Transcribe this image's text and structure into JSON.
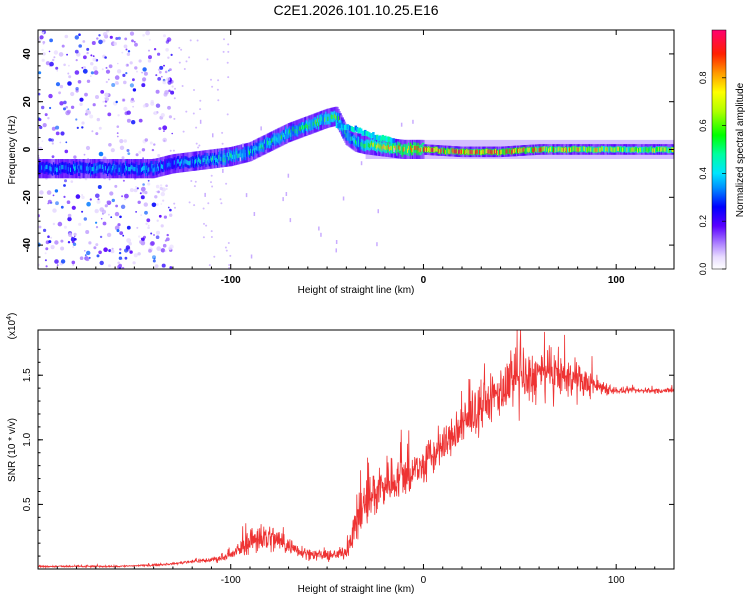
{
  "title": "C2E1.2026.101.10.25.E16",
  "chart_data": [
    {
      "type": "heatmap",
      "panel": "spectrogram",
      "xlabel": "Height of straight line (km)",
      "ylabel": "Frequency (Hz)",
      "xlim": [
        -200,
        130
      ],
      "ylim": [
        -50,
        50
      ],
      "x_ticks": [
        -100,
        0,
        100
      ],
      "x_tick_labels": [
        "-100",
        "0",
        "100"
      ],
      "y_ticks": [
        -40,
        -20,
        0,
        20,
        40
      ],
      "y_tick_labels": [
        "-40",
        "-20",
        "0",
        "20",
        "40"
      ],
      "colorbar": {
        "label": "Normalized spectral amplitude",
        "range": [
          0,
          1
        ],
        "ticks": [
          0.0,
          0.2,
          0.4,
          0.6,
          0.8
        ],
        "tick_labels": [
          "0.0",
          "0.2",
          "0.4",
          "0.6",
          "0.8"
        ]
      },
      "ridge": {
        "description": "dominant frequency vs height",
        "x": [
          -200,
          -180,
          -160,
          -140,
          -130,
          -120,
          -110,
          -100,
          -90,
          -80,
          -70,
          -60,
          -50,
          -45,
          -40,
          -35,
          -30,
          -20,
          -10,
          0,
          20,
          40,
          60,
          80,
          100,
          130
        ],
        "y": [
          -8,
          -8,
          -8,
          -8,
          -6,
          -5,
          -4,
          -3,
          -1,
          3,
          7,
          10,
          13,
          14,
          6,
          3,
          2,
          1,
          0,
          0,
          -1,
          -1,
          0,
          0,
          0,
          0
        ],
        "amplitude": [
          0.4,
          0.4,
          0.4,
          0.4,
          0.35,
          0.4,
          0.45,
          0.5,
          0.5,
          0.5,
          0.55,
          0.55,
          0.6,
          0.6,
          0.5,
          0.5,
          0.6,
          0.75,
          0.85,
          0.9,
          0.9,
          0.9,
          0.85,
          0.8,
          0.75,
          0.7
        ]
      },
      "noise_region": {
        "x_range": [
          -200,
          -130
        ],
        "amplitude": "low, scattered across all frequencies"
      }
    },
    {
      "type": "line",
      "panel": "snr",
      "color": "#ee3333",
      "xlabel": "Height of straight line (km)",
      "ylabel": "SNR (10 * v/v)",
      "multiplier_label": "(x10",
      "multiplier_exponent": "4",
      "xlim": [
        -200,
        130
      ],
      "ylim": [
        0,
        1.85
      ],
      "x_ticks": [
        -100,
        0,
        100
      ],
      "x_tick_labels": [
        "-100",
        "0",
        "100"
      ],
      "y_ticks": [
        0.5,
        1.0,
        1.5
      ],
      "y_tick_labels": [
        "0.5",
        "1.0",
        "1.5"
      ],
      "series": [
        {
          "name": "SNR",
          "x": [
            -200,
            -180,
            -160,
            -140,
            -130,
            -120,
            -110,
            -100,
            -95,
            -90,
            -85,
            -80,
            -75,
            -70,
            -65,
            -60,
            -55,
            -50,
            -45,
            -40,
            -35,
            -30,
            -25,
            -20,
            -15,
            -10,
            -5,
            0,
            10,
            20,
            30,
            40,
            50,
            60,
            70,
            80,
            90,
            95,
            100,
            110,
            120,
            130
          ],
          "y": [
            0.02,
            0.02,
            0.02,
            0.03,
            0.04,
            0.06,
            0.07,
            0.1,
            0.16,
            0.22,
            0.25,
            0.24,
            0.22,
            0.18,
            0.15,
            0.12,
            0.11,
            0.1,
            0.11,
            0.14,
            0.35,
            0.5,
            0.6,
            0.66,
            0.7,
            0.72,
            0.75,
            0.8,
            0.95,
            1.1,
            1.25,
            1.38,
            1.45,
            1.5,
            1.5,
            1.45,
            1.42,
            1.4,
            1.38,
            1.38,
            1.38,
            1.38
          ],
          "noise_amplitude": [
            0.01,
            0.01,
            0.01,
            0.01,
            0.01,
            0.02,
            0.03,
            0.05,
            0.1,
            0.15,
            0.2,
            0.18,
            0.15,
            0.1,
            0.08,
            0.07,
            0.06,
            0.06,
            0.06,
            0.08,
            0.25,
            0.3,
            0.3,
            0.3,
            0.25,
            0.25,
            0.25,
            0.25,
            0.22,
            0.22,
            0.25,
            0.3,
            0.32,
            0.3,
            0.25,
            0.2,
            0.12,
            0.08,
            0.04,
            0.03,
            0.03,
            0.03
          ]
        }
      ]
    }
  ]
}
